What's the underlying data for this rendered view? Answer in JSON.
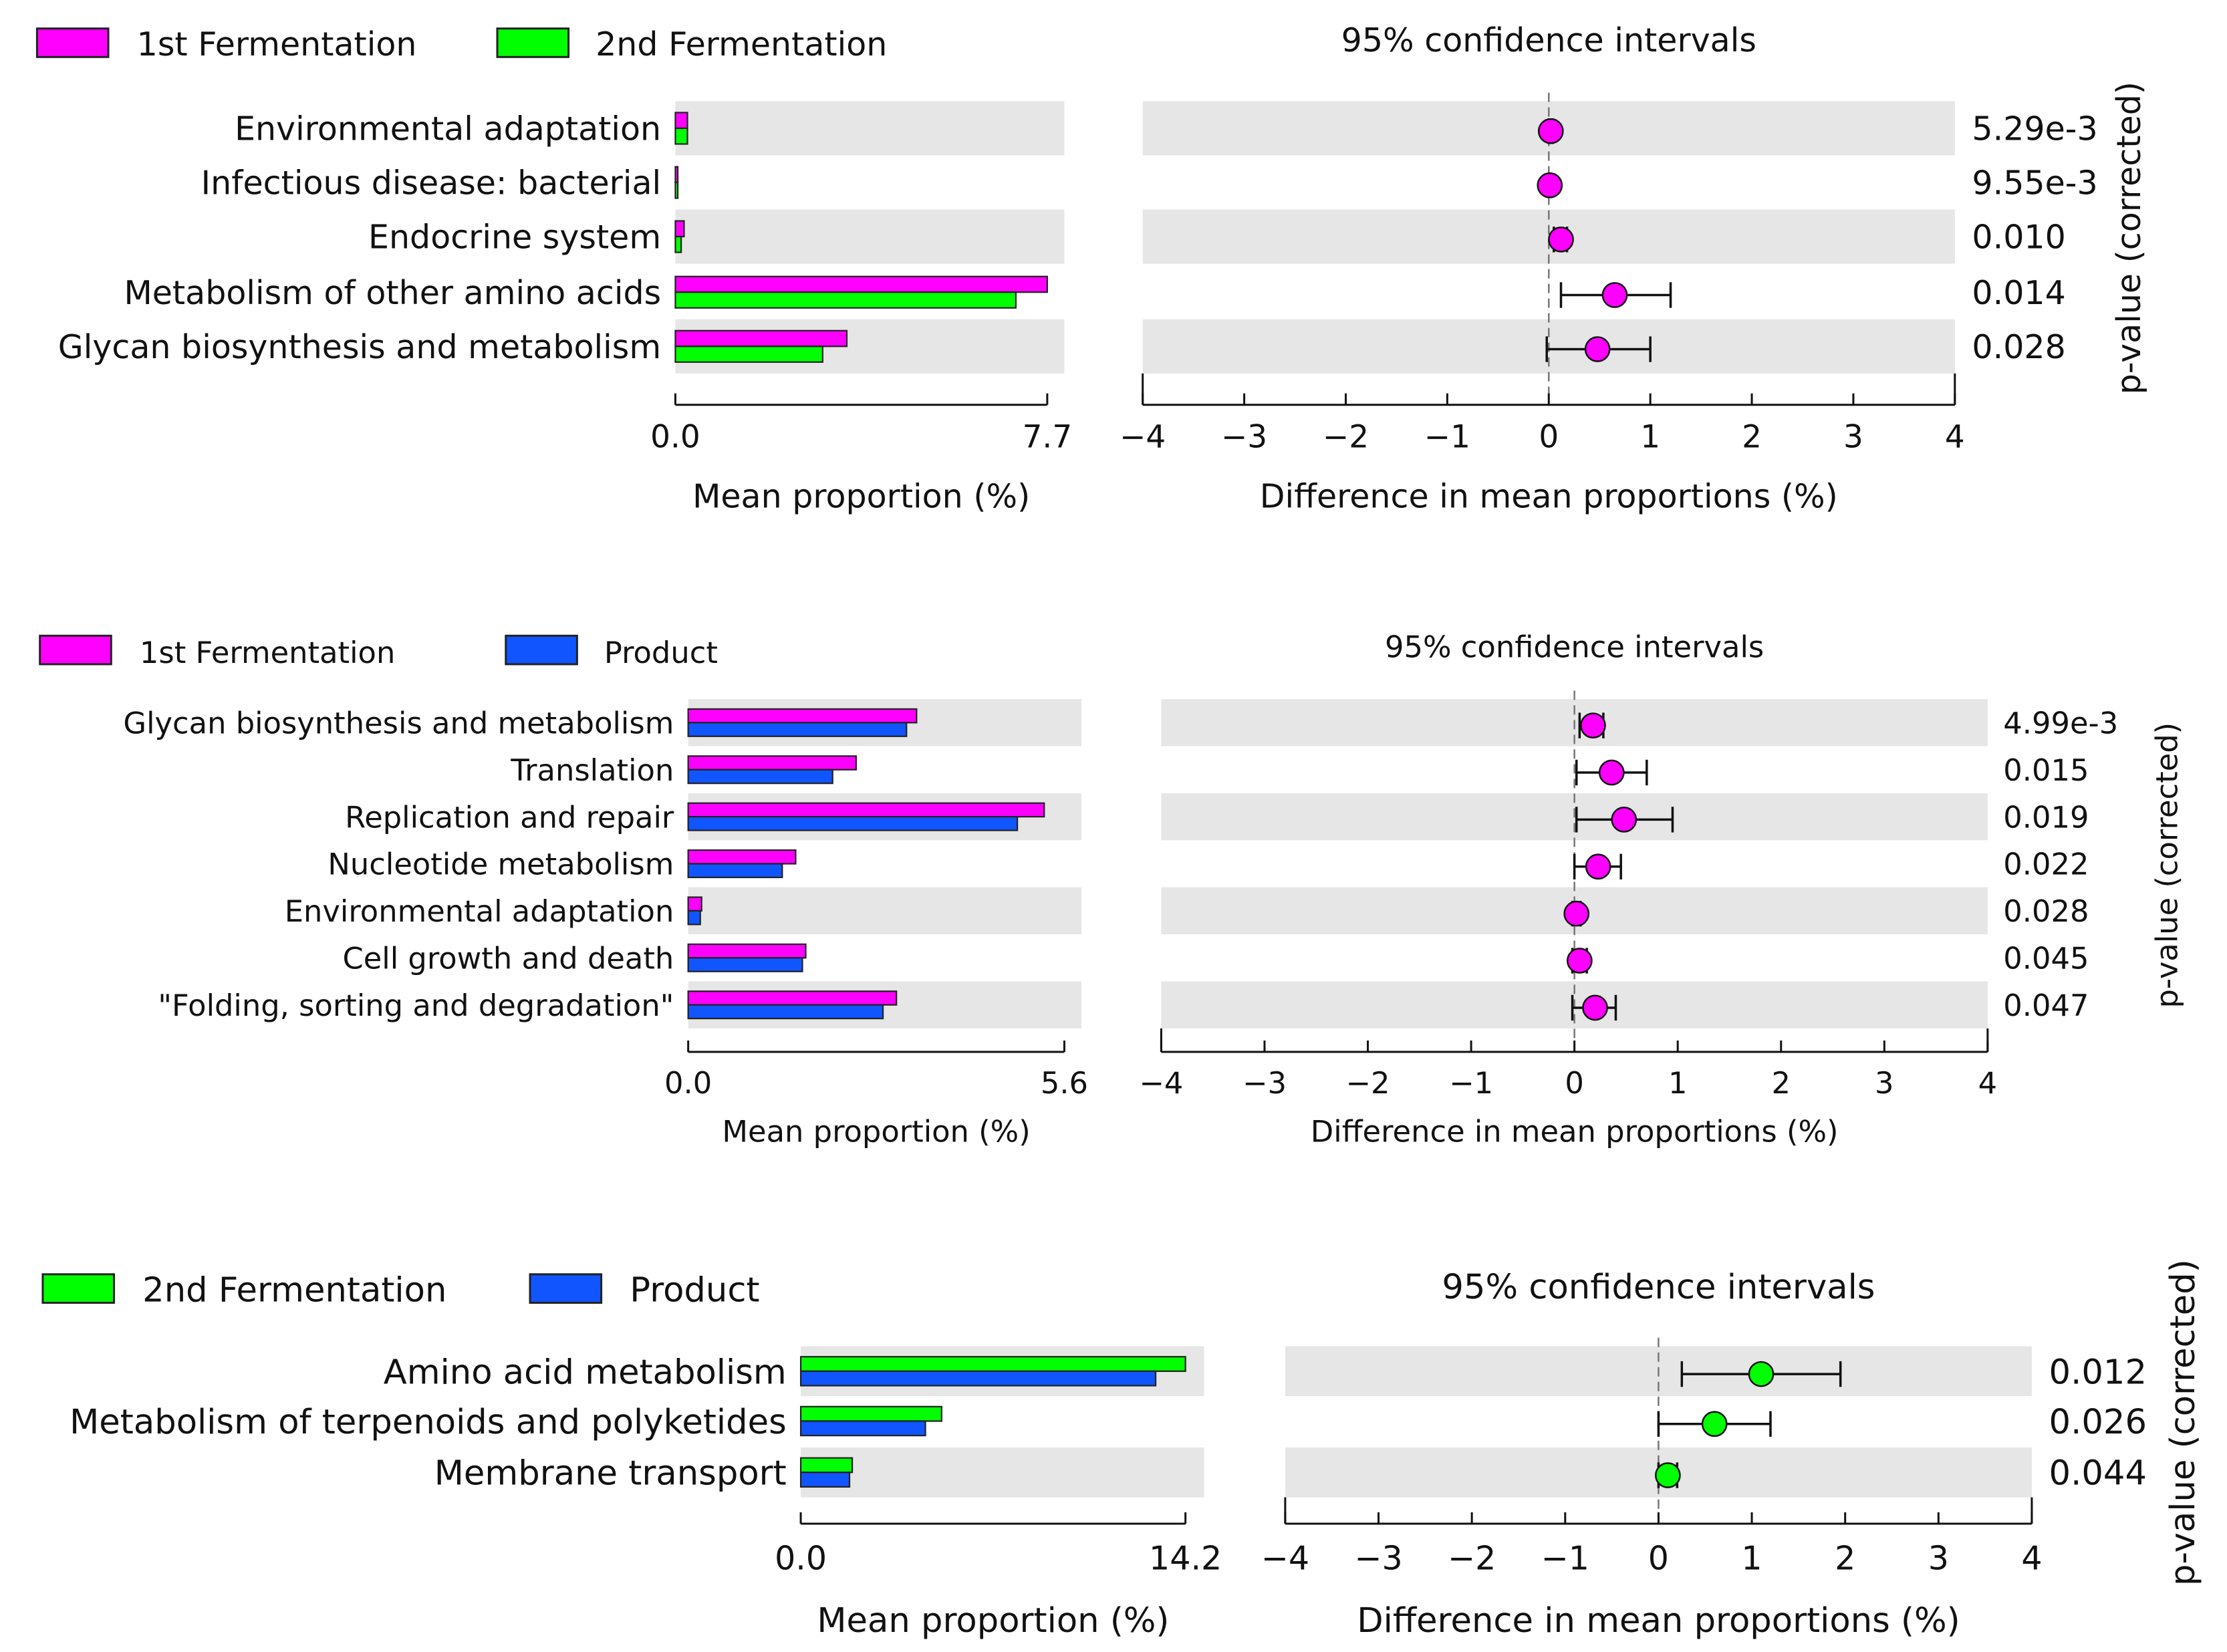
{
  "chart_data": [
    {
      "type": "bar",
      "legend": [
        {
          "name": "1st Fermentation",
          "color": "#ff00ff"
        },
        {
          "name": "2nd Fermentation",
          "color": "#00ff00"
        }
      ],
      "categories": [
        "Environmental adaptation",
        "Infectious disease: bacterial",
        "Endocrine system",
        "Metabolism of other amino acids",
        "Glycan biosynthesis and metabolism"
      ],
      "series": [
        {
          "name": "1st Fermentation",
          "values": [
            0.25,
            0.05,
            0.18,
            7.7,
            3.55
          ]
        },
        {
          "name": "2nd Fermentation",
          "values": [
            0.25,
            0.05,
            0.12,
            7.05,
            3.05
          ]
        }
      ],
      "xlim": [
        0,
        7.7
      ],
      "bar_ticks": [
        "0.0",
        "7.7"
      ],
      "xlabel": "Mean proportion (%)",
      "ci_title": "95% confidence intervals",
      "ci_xlabel": "Difference in mean proportions (%)",
      "ci_xlim": [
        -4,
        4
      ],
      "ci_ticks": [
        -4,
        -3,
        -2,
        -1,
        0,
        1,
        2,
        3,
        4
      ],
      "ci_tick_labels": [
        "−4",
        "−3",
        "−2",
        "−1",
        "0",
        "1",
        "2",
        "3",
        "4"
      ],
      "ci_color": "#ff00ff",
      "ci": [
        {
          "mean": 0.02,
          "low": 0.0,
          "high": 0.04
        },
        {
          "mean": 0.01,
          "low": 0.0,
          "high": 0.02
        },
        {
          "mean": 0.12,
          "low": 0.05,
          "high": 0.18
        },
        {
          "mean": 0.65,
          "low": 0.12,
          "high": 1.2
        },
        {
          "mean": 0.48,
          "low": -0.02,
          "high": 1.0
        }
      ],
      "p_values": [
        "5.29e-3",
        "9.55e-3",
        "0.010",
        "0.014",
        "0.028"
      ],
      "p_label": "p-value (corrected)"
    },
    {
      "type": "bar",
      "legend": [
        {
          "name": "1st Fermentation",
          "color": "#ff00ff"
        },
        {
          "name": "Product",
          "color": "#1155ff"
        }
      ],
      "categories": [
        "Glycan biosynthesis and metabolism",
        "Translation",
        "Replication and repair",
        "Nucleotide metabolism",
        "Environmental adaptation",
        "Cell growth and death",
        "\"Folding, sorting and degradation\""
      ],
      "series": [
        {
          "name": "1st Fermentation",
          "values": [
            3.4,
            2.5,
            5.3,
            1.6,
            0.2,
            1.75,
            3.1
          ]
        },
        {
          "name": "Product",
          "values": [
            3.25,
            2.15,
            4.9,
            1.4,
            0.18,
            1.7,
            2.9
          ]
        }
      ],
      "xlim": [
        0,
        5.6
      ],
      "bar_ticks": [
        "0.0",
        "5.6"
      ],
      "xlabel": "Mean proportion (%)",
      "ci_title": "95% confidence intervals",
      "ci_xlabel": "Difference in mean proportions (%)",
      "ci_xlim": [
        -4,
        4
      ],
      "ci_ticks": [
        -4,
        -3,
        -2,
        -1,
        0,
        1,
        2,
        3,
        4
      ],
      "ci_tick_labels": [
        "−4",
        "−3",
        "−2",
        "−1",
        "0",
        "1",
        "2",
        "3",
        "4"
      ],
      "ci_color": "#ff00ff",
      "ci": [
        {
          "mean": 0.18,
          "low": 0.05,
          "high": 0.28
        },
        {
          "mean": 0.36,
          "low": 0.02,
          "high": 0.7
        },
        {
          "mean": 0.48,
          "low": 0.02,
          "high": 0.95
        },
        {
          "mean": 0.23,
          "low": 0.0,
          "high": 0.45
        },
        {
          "mean": 0.02,
          "low": -0.02,
          "high": 0.06
        },
        {
          "mean": 0.05,
          "low": -0.02,
          "high": 0.12
        },
        {
          "mean": 0.2,
          "low": -0.02,
          "high": 0.4
        }
      ],
      "p_values": [
        "4.99e-3",
        "0.015",
        "0.019",
        "0.022",
        "0.028",
        "0.045",
        "0.047"
      ],
      "p_label": "p-value (corrected)"
    },
    {
      "type": "bar",
      "legend": [
        {
          "name": "2nd Fermentation",
          "color": "#00ff00"
        },
        {
          "name": "Product",
          "color": "#1155ff"
        }
      ],
      "categories": [
        "Amino acid metabolism",
        "Metabolism of terpenoids and polyketides",
        "Membrane transport"
      ],
      "series": [
        {
          "name": "2nd Fermentation",
          "values": [
            14.2,
            5.2,
            1.9
          ]
        },
        {
          "name": "Product",
          "values": [
            13.1,
            4.6,
            1.8
          ]
        }
      ],
      "xlim": [
        0,
        14.2
      ],
      "bar_ticks": [
        "0.0",
        "14.2"
      ],
      "xlabel": "Mean proportion (%)",
      "ci_title": "95% confidence intervals",
      "ci_xlabel": "Difference in mean proportions (%)",
      "ci_xlim": [
        -4,
        4
      ],
      "ci_ticks": [
        -4,
        -3,
        -2,
        -1,
        0,
        1,
        2,
        3,
        4
      ],
      "ci_tick_labels": [
        "−4",
        "−3",
        "−2",
        "−1",
        "0",
        "1",
        "2",
        "3",
        "4"
      ],
      "ci_color": "#00ff00",
      "ci": [
        {
          "mean": 1.1,
          "low": 0.25,
          "high": 1.95
        },
        {
          "mean": 0.6,
          "low": 0.0,
          "high": 1.2
        },
        {
          "mean": 0.1,
          "low": 0.0,
          "high": 0.2
        }
      ],
      "p_values": [
        "0.012",
        "0.026",
        "0.044"
      ],
      "p_label": "p-value (corrected)"
    }
  ]
}
